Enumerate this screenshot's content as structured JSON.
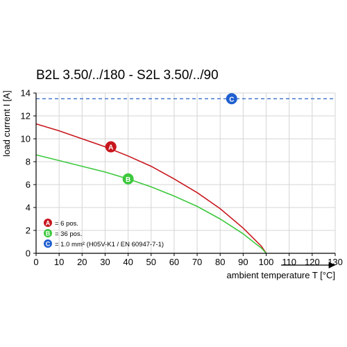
{
  "chart_data": {
    "type": "line",
    "title": "B2L 3.50/../180 - S2L 3.50/../90",
    "xlabel": "ambient temperature T [°C]",
    "ylabel": "load current I [A]",
    "xlim": [
      0,
      130
    ],
    "ylim": [
      0,
      14
    ],
    "xticks": [
      0,
      10,
      20,
      30,
      40,
      50,
      60,
      70,
      80,
      90,
      100,
      110,
      120,
      130
    ],
    "yticks": [
      0,
      2,
      4,
      6,
      8,
      10,
      12,
      14
    ],
    "grid": true,
    "series": [
      {
        "marker": "A",
        "color": "#c8161d",
        "x": [
          0,
          10,
          20,
          30,
          40,
          50,
          60,
          70,
          80,
          90,
          95,
          98,
          100
        ],
        "y": [
          11.3,
          10.7,
          10.0,
          9.3,
          8.5,
          7.6,
          6.5,
          5.3,
          3.9,
          2.2,
          1.2,
          0.6,
          0
        ]
      },
      {
        "marker": "B",
        "color": "#3cc83c",
        "x": [
          0,
          10,
          20,
          30,
          40,
          50,
          60,
          70,
          80,
          90,
          95,
          98,
          100
        ],
        "y": [
          8.6,
          8.1,
          7.6,
          7.1,
          6.5,
          5.8,
          5.0,
          4.1,
          3.0,
          1.7,
          0.9,
          0.45,
          0
        ]
      },
      {
        "marker": "C",
        "color": "#3a6fc8",
        "style": "dashed",
        "x": [
          0,
          130
        ],
        "y": [
          13.5,
          13.5
        ]
      }
    ],
    "marker_points": [
      {
        "label": "A",
        "x": 32.5,
        "y": 9.3,
        "color": "#c8161d"
      },
      {
        "label": "B",
        "x": 40,
        "y": 6.5,
        "color": "#3cc83c"
      },
      {
        "label": "C",
        "x": 85,
        "y": 13.5,
        "color": "#1f5fd0"
      }
    ],
    "legend": {
      "placement": "bottom-left",
      "items": [
        {
          "label": "A",
          "text": "= 6 pos.",
          "color": "#c8161d"
        },
        {
          "label": "B",
          "text": "= 36 pos.",
          "color": "#3cc83c"
        },
        {
          "label": "C",
          "text": "= 1.0 mm² (H05V-K1 / EN 60947-7-1)",
          "color": "#1f5fd0"
        }
      ]
    }
  }
}
